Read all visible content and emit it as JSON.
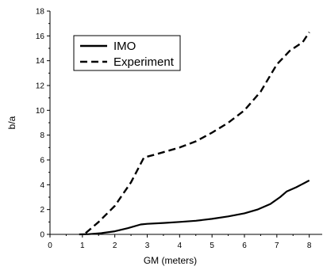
{
  "chart_data": {
    "type": "line",
    "title": "",
    "xlabel": "GM (meters)",
    "ylabel": "b/a",
    "xlim": [
      0,
      8.4
    ],
    "ylim": [
      0,
      18
    ],
    "xticks": [
      "0",
      "1",
      "2",
      "3",
      "4",
      "5",
      "6",
      "7",
      "8"
    ],
    "yticks": [
      "0",
      "2",
      "4",
      "6",
      "8",
      "10",
      "12",
      "14",
      "16",
      "18"
    ],
    "grid": false,
    "legend": "top-left",
    "series": [
      {
        "name": "IMO",
        "style": "solid",
        "color": "#000000",
        "x": [
          0.9,
          1.2,
          1.6,
          2.0,
          2.4,
          2.8,
          3.0,
          3.5,
          4.0,
          4.5,
          5.0,
          5.5,
          6.0,
          6.4,
          6.8,
          7.1,
          7.3,
          7.6,
          8.0
        ],
        "y": [
          0.0,
          0.02,
          0.1,
          0.25,
          0.5,
          0.8,
          0.85,
          0.92,
          1.0,
          1.1,
          1.25,
          1.45,
          1.7,
          2.0,
          2.45,
          3.0,
          3.45,
          3.8,
          4.35
        ]
      },
      {
        "name": "Experiment",
        "style": "dashed",
        "color": "#000000",
        "x": [
          1.1,
          1.5,
          2.0,
          2.5,
          2.9,
          3.2,
          3.6,
          4.0,
          4.5,
          5.0,
          5.5,
          6.0,
          6.5,
          7.0,
          7.4,
          7.8,
          8.0
        ],
        "y": [
          0.1,
          1.0,
          2.3,
          4.2,
          6.2,
          6.4,
          6.7,
          7.0,
          7.5,
          8.2,
          9.0,
          10.0,
          11.5,
          13.7,
          14.8,
          15.5,
          16.3
        ]
      }
    ]
  }
}
